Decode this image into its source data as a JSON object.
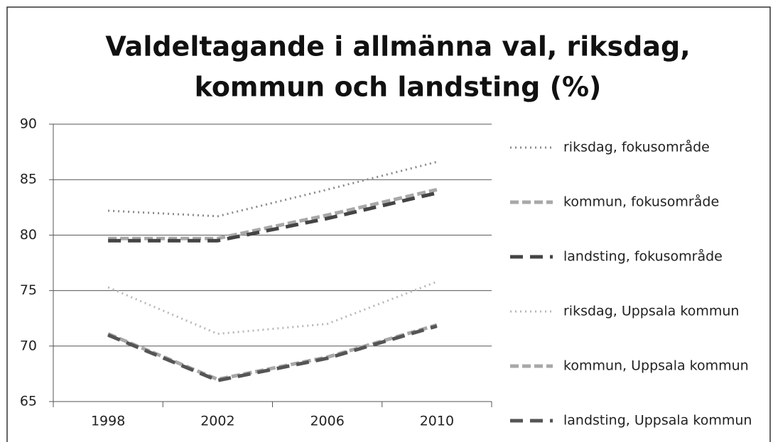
{
  "chart_data": {
    "type": "line",
    "title": [
      "Valdeltagande i allmänna val, riksdag,",
      "kommun och landsting (%)"
    ],
    "categories": [
      "1998",
      "2002",
      "2006",
      "2010"
    ],
    "series": [
      {
        "name": "riksdag, fokusområde",
        "color": "#8a8a8a",
        "dash": "dotted",
        "values": [
          82.2,
          81.7,
          84.1,
          86.6
        ]
      },
      {
        "name": "kommun, fokusområde",
        "color": "#a8a8a8",
        "dash": "dashed",
        "values": [
          79.7,
          79.7,
          81.8,
          84.1
        ]
      },
      {
        "name": "landsting, fokusområde",
        "color": "#444444",
        "dash": "long-dash",
        "values": [
          79.5,
          79.5,
          81.5,
          83.8
        ]
      },
      {
        "name": "riksdag, Uppsala kommun",
        "color": "#b8b8b8",
        "dash": "dotted",
        "values": [
          75.3,
          71.1,
          72.0,
          75.8
        ]
      },
      {
        "name": "kommun, Uppsala kommun",
        "color": "#a8a8a8",
        "dash": "dashed",
        "values": [
          71.1,
          67.0,
          69.0,
          71.9
        ]
      },
      {
        "name": "landsting, Uppsala kommun",
        "color": "#555555",
        "dash": "long-dash",
        "values": [
          71.0,
          66.9,
          68.9,
          71.8
        ]
      }
    ],
    "ylim": [
      65,
      90
    ],
    "yticks": [
      65,
      70,
      75,
      80,
      85,
      90
    ],
    "grid": true,
    "legend": "right"
  }
}
